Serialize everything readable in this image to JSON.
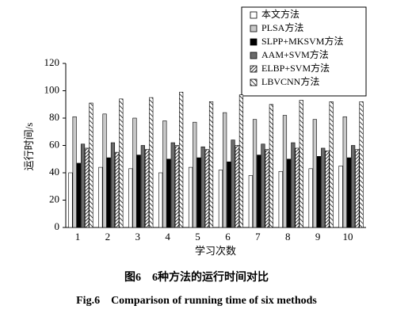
{
  "chart_data": {
    "type": "bar",
    "title": "图6　6种方法的运行时间对比",
    "subtitle": "Fig.6　Comparison of running time of six methods",
    "x_label": "学习次数",
    "y_label": "运行时间/s",
    "categories": [
      "1",
      "2",
      "3",
      "4",
      "5",
      "6",
      "7",
      "8",
      "9",
      "10"
    ],
    "series": [
      {
        "name": "本文方法",
        "color": "#ffffff",
        "values": [
          40,
          44,
          43,
          40,
          44,
          42,
          38,
          41,
          43,
          45
        ]
      },
      {
        "name": "PLSA方法",
        "color": "#c8c8c8",
        "values": [
          81,
          83,
          80,
          78,
          77,
          84,
          79,
          82,
          79,
          81
        ]
      },
      {
        "name": "SLPP+MKSVM方法",
        "color": "#000000",
        "values": [
          47,
          51,
          53,
          50,
          51,
          48,
          53,
          50,
          52,
          51
        ]
      },
      {
        "name": "AAM+SVM方法",
        "color": "#6a6a6a",
        "values": [
          61,
          62,
          60,
          62,
          59,
          64,
          61,
          62,
          58,
          60
        ]
      },
      {
        "name": "ELBP+SVM方法",
        "color": "#000000",
        "hatch": "dense",
        "values": [
          58,
          55,
          57,
          60,
          57,
          60,
          57,
          58,
          56,
          57
        ]
      },
      {
        "name": "LBVCNN方法",
        "color": "#000000",
        "hatch": "wide",
        "values": [
          91,
          94,
          95,
          99,
          92,
          97,
          90,
          93,
          92,
          92
        ]
      }
    ],
    "ylim": [
      0,
      120
    ],
    "yticks": [
      0,
      20,
      40,
      60,
      80,
      100,
      120
    ],
    "grid": false,
    "legend": "top-right"
  }
}
